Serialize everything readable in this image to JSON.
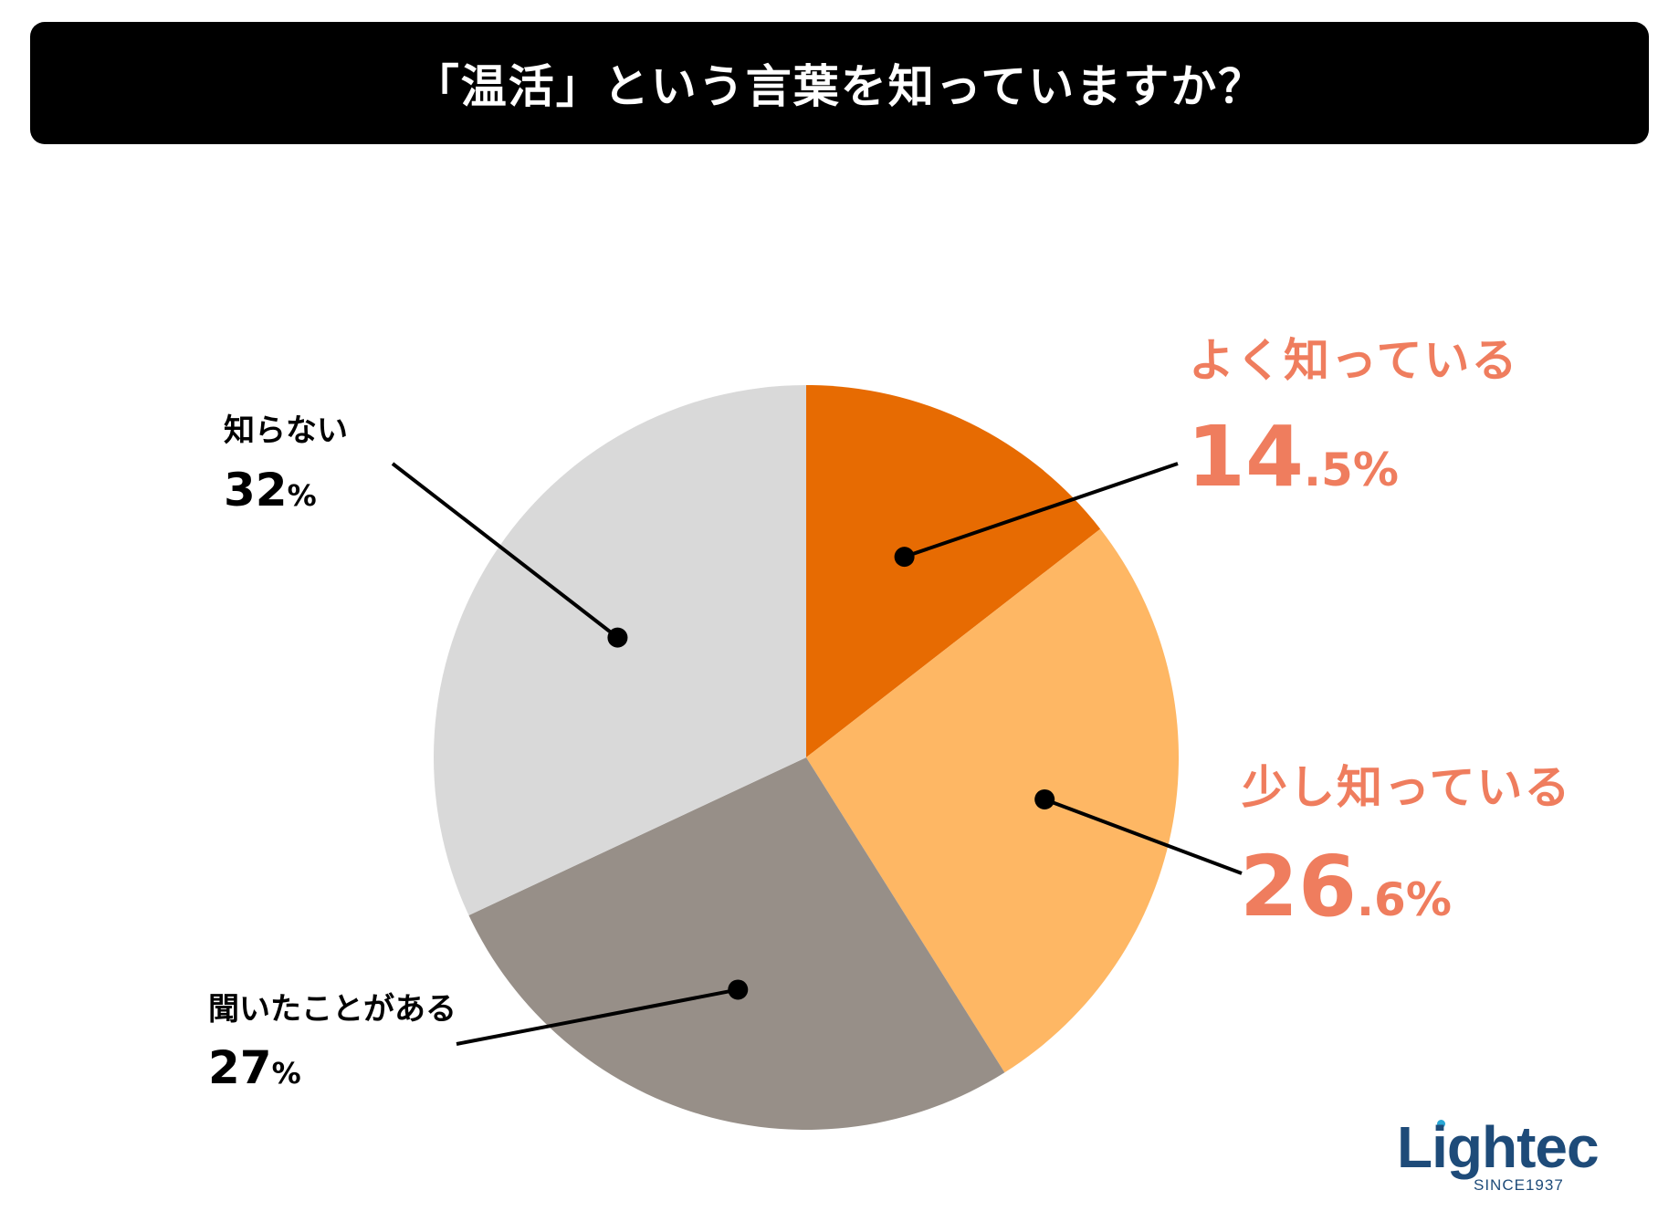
{
  "header": {
    "title": "「温活」という言葉を知っていますか？"
  },
  "chart_data": {
    "type": "pie",
    "title": "「温活」という言葉を知っていますか？",
    "start_angle_deg": 0,
    "direction": "clockwise",
    "slices": [
      {
        "key": "well",
        "label": "よく知っている",
        "value": 14.5,
        "int_part": "14",
        "dec_part": ".5%",
        "color": "#e76b02",
        "label_color": "#ef7d5e"
      },
      {
        "key": "little",
        "label": "少し知っている",
        "value": 26.6,
        "int_part": "26",
        "dec_part": ".6%",
        "color": "#feb764",
        "label_color": "#ef7d5e"
      },
      {
        "key": "heard",
        "label": "聞いたことがある",
        "value": 27,
        "int_part": "27",
        "dec_part": "%",
        "color": "#978f88",
        "label_color": "#000000"
      },
      {
        "key": "unknown",
        "label": "知らない",
        "value": 32,
        "int_part": "32",
        "dec_part": "%",
        "color": "#d9d9d9",
        "label_color": "#000000"
      }
    ]
  },
  "logo": {
    "name": "Lightec",
    "tagline": "SINCE1937",
    "color": "#1e4b79"
  }
}
